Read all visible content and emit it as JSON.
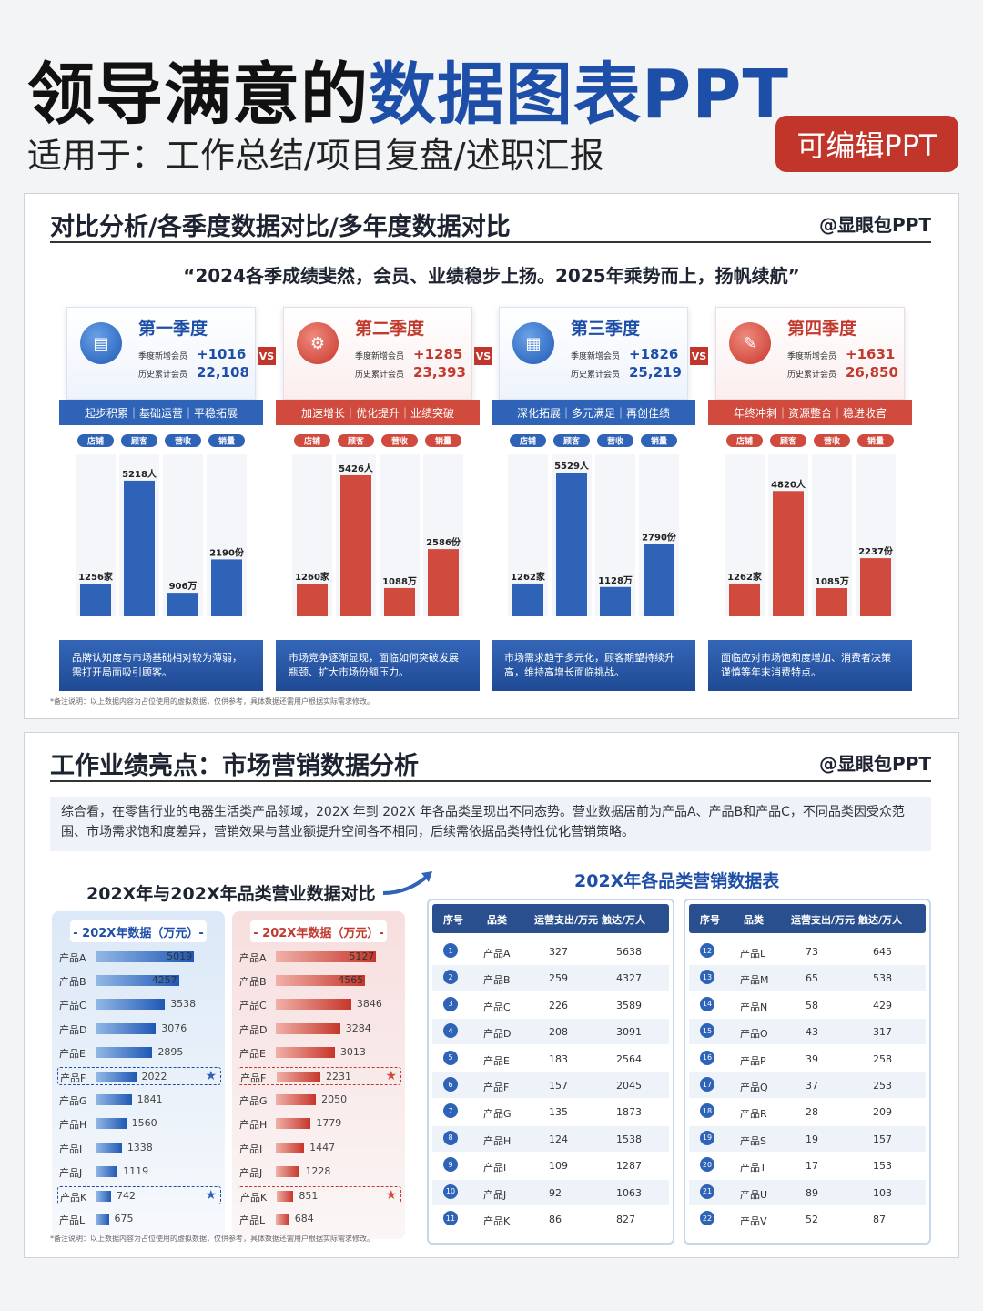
{
  "header": {
    "title_dark": "领导满意的",
    "title_blue": "数据图表PPT",
    "subtitle": "适用于：工作总结/项目复盘/述职汇报",
    "edit_badge": "可编辑PPT"
  },
  "colors": {
    "blue": "#2f63b7",
    "red": "#d04b3e",
    "dark_blue": "#1e4fa8"
  },
  "section1": {
    "title": "对比分析/各季度数据对比/多年度数据对比",
    "brand": "@显眼包PPT",
    "quote": "“2024各季成绩斐然，会员、业绩稳步上扬。2025年乘势而上，扬帆续航”",
    "vs": "VS",
    "note": "*备注说明：以上数据内容为占位使用的虚拟数据，仅供参考，具体数据还需用户根据实际需求修改。",
    "labels": {
      "new_members": "季度新增会员",
      "total_members": "历史累计会员"
    },
    "quarters": [
      {
        "name": "第一季度",
        "icon": "chart-screen-icon",
        "theme": "blue",
        "new": "+1016",
        "total": "22,108",
        "band": "起步积累｜基础运营｜平稳拓展",
        "foot": "品牌认知度与市场基础相对较为薄弱，需打开局面吸引顾客。"
      },
      {
        "name": "第二季度",
        "icon": "monitor-gear-icon",
        "theme": "red",
        "new": "+1285",
        "total": "23,393",
        "band": "加速增长｜优化提升｜业绩突破",
        "foot": "市场竞争逐渐显现，面临如何突破发展瓶颈、扩大市场份额压力。"
      },
      {
        "name": "第三季度",
        "icon": "document-icon",
        "theme": "blue",
        "new": "+1826",
        "total": "25,219",
        "band": "深化拓展｜多元满足｜再创佳绩",
        "foot": "市场需求趋于多元化，顾客期望持续升高，维持高增长面临挑战。"
      },
      {
        "name": "第四季度",
        "icon": "clipboard-icon",
        "theme": "red",
        "new": "+1631",
        "total": "26,850",
        "band": "年终冲刺｜资源整合｜稳进收官",
        "foot": "面临应对市场饱和度增加、消费者决策谨慎等年末消费特点。"
      }
    ]
  },
  "section2": {
    "title": "工作业绩亮点：市场营销数据分析",
    "brand": "@显眼包PPT",
    "intro": "综合看，在零售行业的电器生活类产品领域，202X 年到 202X 年各品类呈现出不同态势。营业数据居前为产品A、产品B和产品C，不同品类因受众范围、市场需求饱和度差异，营销效果与营业额提升空间各不相同，后续需依据品类特性优化营销策略。",
    "compare_title": "202X年与202X年品类营业数据对比",
    "col_left_title": "- 202X年数据（万元）-",
    "col_right_title": "- 202X年数据（万元）-",
    "table_title": "202X年各品类营销数据表",
    "table_headers": [
      "序号",
      "品类",
      "运营支出/万元",
      "触达/万人"
    ],
    "note": "*备注说明：以上数据内容为占位使用的虚拟数据，仅供参考，具体数据还需用户根据实际需求修改。"
  },
  "chart_data": [
    {
      "type": "bar",
      "title": "第一季度",
      "categories": [
        "店铺",
        "顾客",
        "营收",
        "销量"
      ],
      "values": [
        1256,
        5218,
        906,
        2190
      ],
      "value_labels": [
        "1256家",
        "5218人",
        "906万",
        "2190份"
      ]
    },
    {
      "type": "bar",
      "title": "第二季度",
      "categories": [
        "店铺",
        "顾客",
        "营收",
        "销量"
      ],
      "values": [
        1260,
        5426,
        1088,
        2586
      ],
      "value_labels": [
        "1260家",
        "5426人",
        "1088万",
        "2586份"
      ]
    },
    {
      "type": "bar",
      "title": "第三季度",
      "categories": [
        "店铺",
        "顾客",
        "营收",
        "销量"
      ],
      "values": [
        1262,
        5529,
        1128,
        2790
      ],
      "value_labels": [
        "1262家",
        "5529人",
        "1128万",
        "2790份"
      ]
    },
    {
      "type": "bar",
      "title": "第四季度",
      "categories": [
        "店铺",
        "顾客",
        "营收",
        "销量"
      ],
      "values": [
        1262,
        4820,
        1085,
        2237
      ],
      "value_labels": [
        "1262家",
        "4820人",
        "1085万",
        "2237份"
      ]
    },
    {
      "type": "bar",
      "orientation": "horizontal",
      "title": "- 202X年数据（万元）-",
      "categories": [
        "产品A",
        "产品B",
        "产品C",
        "产品D",
        "产品E",
        "产品F",
        "产品G",
        "产品H",
        "产品I",
        "产品J",
        "产品K",
        "产品L"
      ],
      "values": [
        5019,
        4257,
        3538,
        3076,
        2895,
        2022,
        1841,
        1560,
        1338,
        1119,
        742,
        675
      ],
      "highlighted": [
        "产品F",
        "产品K"
      ]
    },
    {
      "type": "bar",
      "orientation": "horizontal",
      "title": "- 202X年数据（万元）-",
      "categories": [
        "产品A",
        "产品B",
        "产品C",
        "产品D",
        "产品E",
        "产品F",
        "产品G",
        "产品H",
        "产品I",
        "产品J",
        "产品K",
        "产品L"
      ],
      "values": [
        5127,
        4565,
        3846,
        3284,
        3013,
        2231,
        2050,
        1779,
        1447,
        1228,
        851,
        684
      ],
      "highlighted": [
        "产品F",
        "产品K"
      ]
    },
    {
      "type": "table",
      "title": "202X年各品类营销数据表",
      "columns": [
        "序号",
        "品类",
        "运营支出/万元",
        "触达/万人"
      ],
      "rows": [
        [
          "1",
          "产品A",
          "327",
          "5638"
        ],
        [
          "2",
          "产品B",
          "259",
          "4327"
        ],
        [
          "3",
          "产品C",
          "226",
          "3589"
        ],
        [
          "4",
          "产品D",
          "208",
          "3091"
        ],
        [
          "5",
          "产品E",
          "183",
          "2564"
        ],
        [
          "6",
          "产品F",
          "157",
          "2045"
        ],
        [
          "7",
          "产品G",
          "135",
          "1873"
        ],
        [
          "8",
          "产品H",
          "124",
          "1538"
        ],
        [
          "9",
          "产品I",
          "109",
          "1287"
        ],
        [
          "10",
          "产品J",
          "92",
          "1063"
        ],
        [
          "11",
          "产品K",
          "86",
          "827"
        ],
        [
          "12",
          "产品L",
          "73",
          "645"
        ],
        [
          "13",
          "产品M",
          "65",
          "538"
        ],
        [
          "14",
          "产品N",
          "58",
          "429"
        ],
        [
          "15",
          "产品O",
          "43",
          "317"
        ],
        [
          "16",
          "产品P",
          "39",
          "258"
        ],
        [
          "17",
          "产品Q",
          "37",
          "253"
        ],
        [
          "18",
          "产品R",
          "28",
          "209"
        ],
        [
          "19",
          "产品S",
          "19",
          "157"
        ],
        [
          "20",
          "产品T",
          "17",
          "153"
        ],
        [
          "21",
          "产品U",
          "89",
          "103"
        ],
        [
          "22",
          "产品V",
          "52",
          "87"
        ]
      ]
    }
  ]
}
